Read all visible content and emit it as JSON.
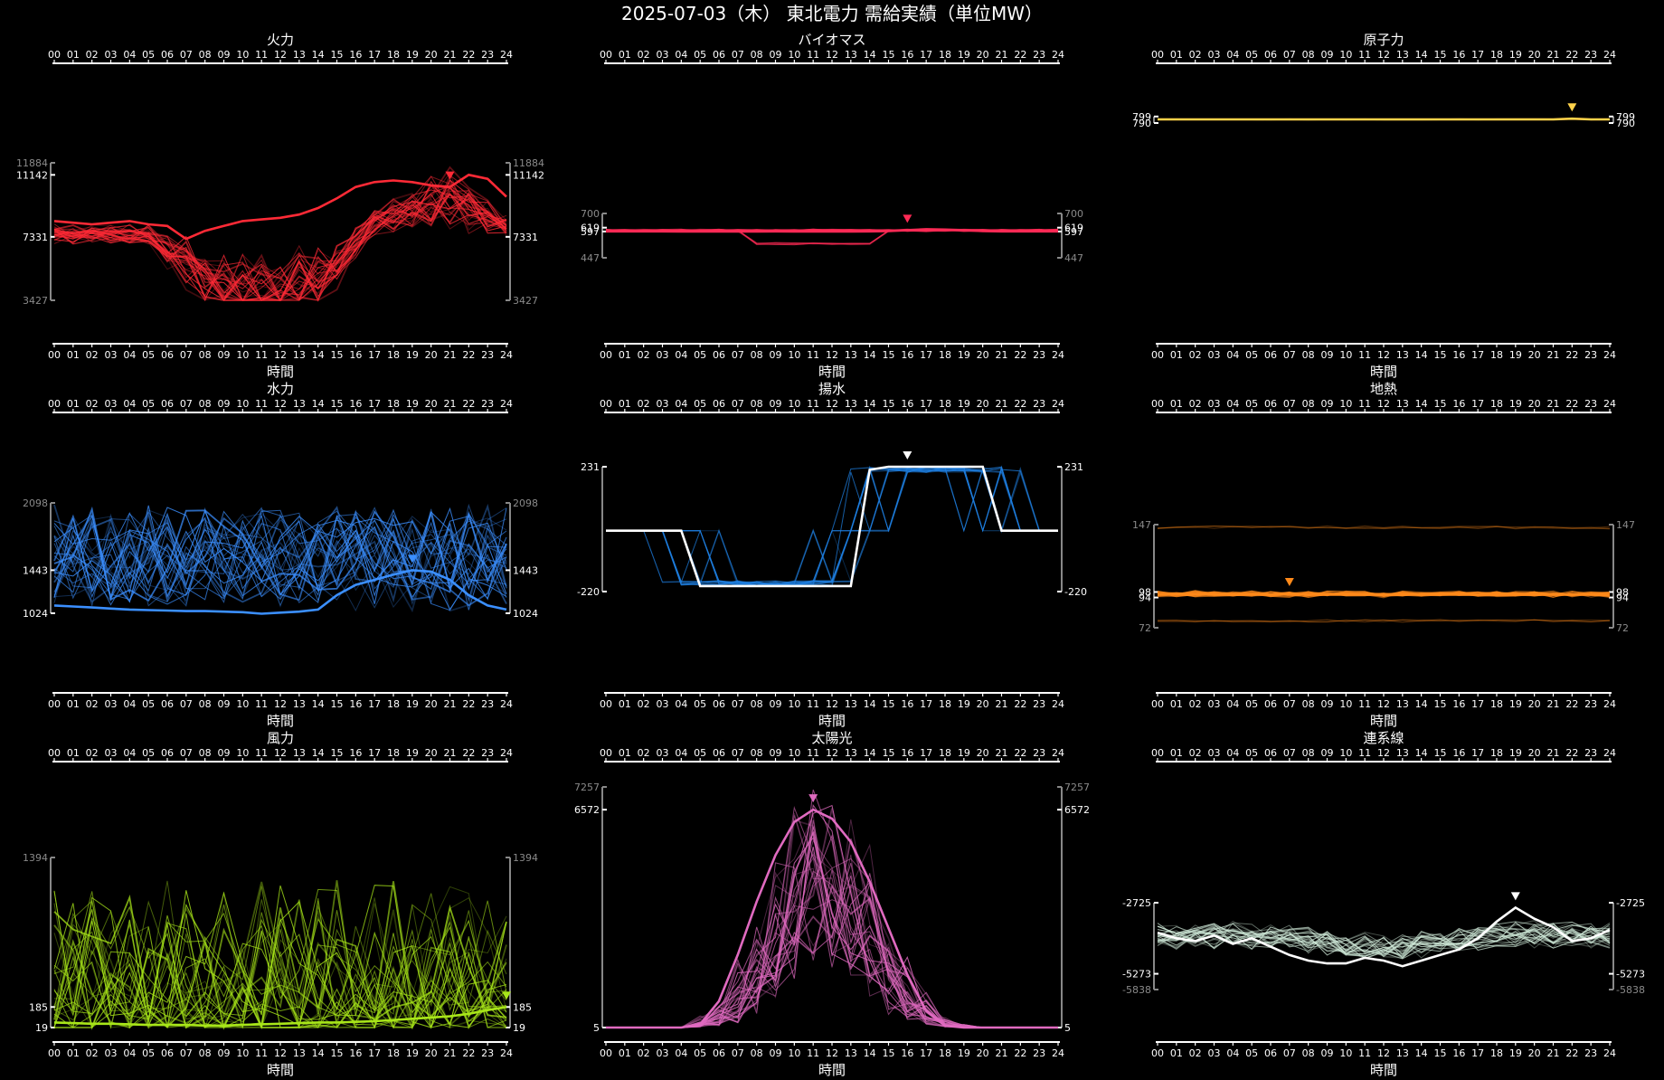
{
  "page_title": "2025-07-03（木） 東北電力 需給実績（単位MW）",
  "hours": [
    "00",
    "01",
    "02",
    "03",
    "04",
    "05",
    "06",
    "07",
    "08",
    "09",
    "10",
    "11",
    "12",
    "13",
    "14",
    "15",
    "16",
    "17",
    "18",
    "19",
    "20",
    "21",
    "22",
    "23",
    "24"
  ],
  "xlabel": "時間",
  "chart_data": [
    {
      "id": "thermal",
      "type": "line",
      "title": "火力",
      "color": "#ff2a36",
      "ylim": [
        3427,
        11884
      ],
      "ticks_left": [
        {
          "v": 11884,
          "label": "11884",
          "dim": true
        },
        {
          "v": 11142,
          "label": "11142",
          "dim": false
        },
        {
          "v": 7331,
          "label": "7331",
          "dim": false
        },
        {
          "v": 3427,
          "label": "3427",
          "dim": true
        }
      ],
      "ticks_right": [
        {
          "v": 11884,
          "label": "11884",
          "dim": true
        },
        {
          "v": 11142,
          "label": "11142",
          "dim": false
        },
        {
          "v": 7331,
          "label": "7331",
          "dim": false
        },
        {
          "v": 3427,
          "label": "3427",
          "dim": true
        }
      ],
      "today": [
        8300,
        8200,
        8100,
        8200,
        8300,
        8100,
        8000,
        7200,
        7700,
        8000,
        8300,
        8400,
        8500,
        8700,
        9100,
        9700,
        10400,
        10700,
        10800,
        10700,
        10500,
        10400,
        11142,
        10900,
        9800
      ],
      "marker_hour": 21,
      "shape": "inverse_day",
      "hist_count": 30,
      "x_axis_bottom": true
    },
    {
      "id": "biomass",
      "type": "line",
      "title": "バイオマス",
      "color": "#ff2a55",
      "ylim": [
        447,
        700
      ],
      "ticks_left": [
        {
          "v": 700,
          "label": "700",
          "dim": true
        },
        {
          "v": 619,
          "label": "619",
          "dim": false
        },
        {
          "v": 597,
          "label": "597",
          "dim": false
        },
        {
          "v": 447,
          "label": "447",
          "dim": true
        }
      ],
      "ticks_right": [
        {
          "v": 700,
          "label": "700",
          "dim": true
        },
        {
          "v": 619,
          "label": "619",
          "dim": false
        },
        {
          "v": 597,
          "label": "597",
          "dim": false
        },
        {
          "v": 447,
          "label": "447",
          "dim": true
        }
      ],
      "today": [
        598,
        598,
        598,
        598,
        597,
        597,
        597,
        597,
        597,
        598,
        597,
        597,
        597,
        597,
        598,
        600,
        605,
        610,
        608,
        605,
        600,
        598,
        598,
        598,
        598
      ],
      "marker_hour": 16,
      "shape": "flat_dip",
      "hist_count": 22,
      "x_axis_bottom": true
    },
    {
      "id": "nuclear",
      "type": "line",
      "title": "原子力",
      "color": "#ffd24a",
      "ylim": [
        790,
        800
      ],
      "ticks_left": [
        {
          "v": 799,
          "label": "799",
          "dim": false
        },
        {
          "v": 790,
          "label": "790",
          "dim": false
        }
      ],
      "ticks_right": [
        {
          "v": 799,
          "label": "799",
          "dim": false
        },
        {
          "v": 790,
          "label": "790",
          "dim": false
        }
      ],
      "today": [
        795,
        795,
        795,
        795,
        795,
        795,
        795,
        795,
        795,
        795,
        795,
        795,
        795,
        795,
        795,
        795,
        795,
        795,
        795,
        795,
        795,
        795,
        796,
        795,
        795
      ],
      "marker_hour": 22,
      "shape": "flat",
      "hist_count": 3,
      "x_axis_bottom": true
    },
    {
      "id": "hydro",
      "type": "line",
      "title": "水力",
      "color": "#3b8fff",
      "ylim": [
        1024,
        2098
      ],
      "ticks_left": [
        {
          "v": 2098,
          "label": "2098",
          "dim": true
        },
        {
          "v": 1443,
          "label": "1443",
          "dim": false
        },
        {
          "v": 1024,
          "label": "1024",
          "dim": false
        }
      ],
      "ticks_right": [
        {
          "v": 2098,
          "label": "2098",
          "dim": true
        },
        {
          "v": 1443,
          "label": "1443",
          "dim": false
        },
        {
          "v": 1024,
          "label": "1024",
          "dim": false
        }
      ],
      "today": [
        1100,
        1090,
        1080,
        1070,
        1060,
        1055,
        1050,
        1045,
        1045,
        1040,
        1035,
        1020,
        1030,
        1040,
        1060,
        1200,
        1300,
        1350,
        1400,
        1443,
        1430,
        1350,
        1200,
        1100,
        1060
      ],
      "marker_hour": 19,
      "shape": "hydro",
      "hist_count": 30,
      "x_axis_bottom": true
    },
    {
      "id": "pumped",
      "type": "line",
      "title": "揚水",
      "color": "#1f7fe0",
      "ylim": [
        -220,
        231
      ],
      "ticks_left": [
        {
          "v": 231,
          "label": "231",
          "dim": false
        },
        {
          "v": -220,
          "label": "-220",
          "dim": false
        }
      ],
      "ticks_right": [
        {
          "v": 231,
          "label": "231",
          "dim": false
        },
        {
          "v": -220,
          "label": "-220",
          "dim": false
        }
      ],
      "today": [
        0,
        0,
        0,
        0,
        0,
        -200,
        -200,
        -200,
        -200,
        -200,
        -200,
        -200,
        -200,
        -200,
        220,
        231,
        231,
        231,
        231,
        231,
        231,
        0,
        0,
        0,
        0
      ],
      "marker_hour": 16,
      "shape": "pumped",
      "hist_count": 18,
      "x_axis_bottom": true
    },
    {
      "id": "geothermal",
      "type": "line",
      "title": "地熱",
      "color": "#ff8a1a",
      "ylim": [
        72,
        147
      ],
      "ticks_left": [
        {
          "v": 147,
          "label": "147",
          "dim": true
        },
        {
          "v": 98,
          "label": "98",
          "dim": false
        },
        {
          "v": 94,
          "label": "94",
          "dim": false
        },
        {
          "v": 72,
          "label": "72",
          "dim": true
        }
      ],
      "ticks_right": [
        {
          "v": 147,
          "label": "147",
          "dim": true
        },
        {
          "v": 98,
          "label": "98",
          "dim": false
        },
        {
          "v": 94,
          "label": "94",
          "dim": false
        },
        {
          "v": 72,
          "label": "72",
          "dim": true
        }
      ],
      "today": [
        96,
        96,
        96,
        96,
        96,
        96,
        96,
        97,
        96,
        96,
        96,
        96,
        96,
        96,
        96,
        96,
        96,
        96,
        96,
        96,
        96,
        96,
        96,
        96,
        96
      ],
      "marker_hour": 7,
      "shape": "geo",
      "hist_count": 24,
      "x_axis_bottom": true
    },
    {
      "id": "wind",
      "type": "line",
      "title": "風力",
      "color": "#a8e619",
      "ylim": [
        19,
        1394
      ],
      "ticks_left": [
        {
          "v": 1394,
          "label": "1394",
          "dim": true
        },
        {
          "v": 185,
          "label": "185",
          "dim": false
        },
        {
          "v": 19,
          "label": "19",
          "dim": false
        }
      ],
      "ticks_right": [
        {
          "v": 1394,
          "label": "1394",
          "dim": true
        },
        {
          "v": 185,
          "label": "185",
          "dim": false
        },
        {
          "v": 19,
          "label": "19",
          "dim": false
        }
      ],
      "today": [
        60,
        55,
        50,
        50,
        45,
        40,
        40,
        40,
        35,
        35,
        40,
        45,
        50,
        55,
        60,
        60,
        65,
        70,
        80,
        90,
        100,
        110,
        130,
        160,
        185
      ],
      "marker_hour": 24,
      "shape": "wind",
      "hist_count": 30,
      "x_axis_bottom": true
    },
    {
      "id": "solar",
      "type": "line",
      "title": "太陽光",
      "color": "#e06ac0",
      "ylim": [
        5,
        7257
      ],
      "ticks_left": [
        {
          "v": 7257,
          "label": "7257",
          "dim": true
        },
        {
          "v": 6572,
          "label": "6572",
          "dim": false
        },
        {
          "v": 5,
          "label": "5",
          "dim": false
        }
      ],
      "ticks_right": [
        {
          "v": 7257,
          "label": "7257",
          "dim": true
        },
        {
          "v": 6572,
          "label": "6572",
          "dim": false
        },
        {
          "v": 5,
          "label": "5",
          "dim": false
        }
      ],
      "today": [
        5,
        5,
        5,
        5,
        5,
        100,
        800,
        2200,
        3800,
        5200,
        6200,
        6572,
        6300,
        5600,
        4400,
        3000,
        1600,
        500,
        60,
        5,
        5,
        5,
        5,
        5,
        5
      ],
      "marker_hour": 11,
      "shape": "solar",
      "hist_count": 30,
      "x_axis_bottom": true
    },
    {
      "id": "interconnect",
      "type": "line",
      "title": "連系線",
      "color": "#cfe9d8",
      "ylim": [
        -5838,
        -2725
      ],
      "ticks_left": [
        {
          "v": -2725,
          "label": "-2725",
          "dim": false
        },
        {
          "v": -5273,
          "label": "-5273",
          "dim": false
        },
        {
          "v": -5838,
          "label": "-5838",
          "dim": true
        }
      ],
      "ticks_right": [
        {
          "v": -2725,
          "label": "-2725",
          "dim": false
        },
        {
          "v": -5273,
          "label": "-5273",
          "dim": false
        },
        {
          "v": -5838,
          "label": "-5838",
          "dim": true
        }
      ],
      "today": [
        -3800,
        -4000,
        -4100,
        -3900,
        -4200,
        -4000,
        -4300,
        -4600,
        -4800,
        -4900,
        -4900,
        -4700,
        -4800,
        -5000,
        -4800,
        -4600,
        -4400,
        -4000,
        -3400,
        -2900,
        -3300,
        -3600,
        -4100,
        -4000,
        -3700
      ],
      "marker_hour": 19,
      "shape": "interconnect",
      "hist_count": 24,
      "x_axis_bottom": true
    }
  ]
}
